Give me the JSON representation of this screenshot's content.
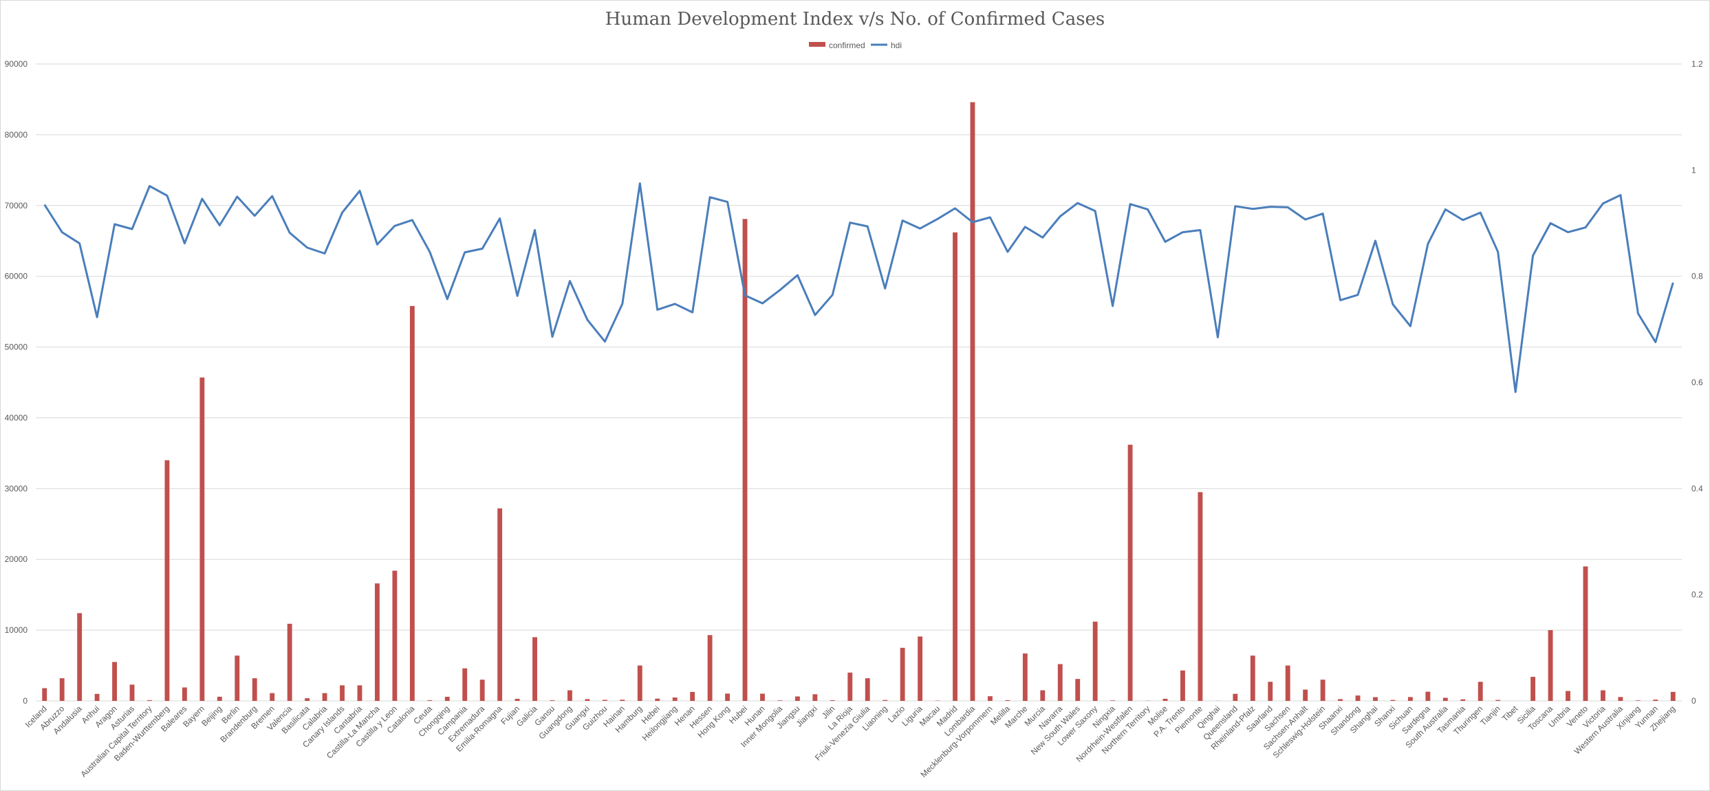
{
  "chart_data": {
    "type": "bar",
    "title": "Human Development Index v/s No. of Confirmed Cases",
    "legend": {
      "position": "top",
      "entries": [
        "confirmed",
        "hdi"
      ]
    },
    "grid": true,
    "colors": {
      "confirmed": "#C0504D",
      "hdi": "#4A7EBB",
      "grid": "#D9D9D9",
      "axis_text": "#595959"
    },
    "y_left": {
      "min": 0,
      "max": 90000,
      "ticks": [
        0,
        10000,
        20000,
        30000,
        40000,
        50000,
        60000,
        70000,
        80000,
        90000
      ]
    },
    "y_right": {
      "min": 0,
      "max": 1.2,
      "ticks": [
        "0",
        "0.2",
        "0.4",
        "0.6",
        "0.8",
        "1",
        "1.2"
      ]
    },
    "categories": [
      "Iceland",
      "Abruzzo",
      "Andalusia",
      "Anhui",
      "Aragon",
      "Asturias",
      "Australian Capital Territory",
      "Baden-Wurttemberg",
      "Baleares",
      "Bayern",
      "Beijing",
      "Berlin",
      "Brandenburg",
      "Bremen",
      "Valencia",
      "Basilicata",
      "Calabria",
      "Canary Islands",
      "Cantabria",
      "Castilla-La Mancha",
      "Castilla y Leon",
      "Catalonia",
      "Ceuta",
      "Chongqing",
      "Campania",
      "Extremadura",
      "Emilia-Romagna",
      "Fujian",
      "Galicia",
      "Gansu",
      "Guangdong",
      "Guangxi",
      "Guizhou",
      "Hainan",
      "Hamburg",
      "Hebei",
      "Heilongjiang",
      "Henan",
      "Hessen",
      "Hong Kong",
      "Hubei",
      "Hunan",
      "Inner Mongolia",
      "Jiangsu",
      "Jiangxi",
      "Jilin",
      "La Rioja",
      "Friuli-Venezia Giulia",
      "Liaoning",
      "Lazio",
      "Liguria",
      "Macau",
      "Madrid",
      "Lombardia",
      "Mecklenburg-Vorpommern",
      "Melilla",
      "Marche",
      "Murcia",
      "Navarra",
      "New South Wales",
      "Lower Saxony",
      "Ningxia",
      "Nordrhein-Westfalen",
      "Northern Territory",
      "Molise",
      "P.A. Trento",
      "Piemonte",
      "Qinghai",
      "Queensland",
      "Rheinland-Pfalz",
      "Saarland",
      "Sachsen",
      "Sachsen-Anhalt",
      "Schleswig-Holstein",
      "Shaanxi",
      "Shandong",
      "Shanghai",
      "Shanxi",
      "Sichuan",
      "Sardegna",
      "South Australia",
      "Tasmania",
      "Thuringen",
      "Tianjin",
      "Tibet",
      "Sicilia",
      "Toscana",
      "Umbria",
      "Veneto",
      "Victoria",
      "Western Australia",
      "Xinjiang",
      "Yunnan",
      "Zhejiang"
    ],
    "series": [
      {
        "name": "confirmed",
        "type": "bar",
        "axis": "left",
        "values": [
          1800,
          3200,
          12400,
          990,
          5500,
          2300,
          107,
          34000,
          1900,
          45700,
          590,
          6400,
          3200,
          1100,
          10900,
          380,
          1100,
          2200,
          2200,
          16600,
          18400,
          55800,
          100,
          580,
          4600,
          3000,
          27200,
          296,
          9000,
          91,
          1500,
          254,
          146,
          168,
          5000,
          320,
          480,
          1270,
          9300,
          1030,
          68100,
          1020,
          75,
          630,
          940,
          93,
          4000,
          3200,
          125,
          7500,
          9100,
          45,
          66200,
          84600,
          660,
          100,
          6700,
          1500,
          5200,
          3100,
          11200,
          75,
          36200,
          30,
          300,
          4300,
          29500,
          18,
          1000,
          6400,
          2700,
          5000,
          1600,
          3000,
          250,
          760,
          530,
          133,
          545,
          1300,
          440,
          220,
          2700,
          136,
          1,
          3400,
          10000,
          1400,
          19000,
          1500,
          550,
          76,
          180,
          1270
        ]
      },
      {
        "name": "hdi",
        "type": "line",
        "axis": "right",
        "values": [
          0.935,
          0.883,
          0.862,
          0.723,
          0.898,
          0.889,
          0.97,
          0.952,
          0.862,
          0.946,
          0.896,
          0.95,
          0.914,
          0.951,
          0.882,
          0.854,
          0.843,
          0.92,
          0.961,
          0.86,
          0.895,
          0.906,
          0.846,
          0.757,
          0.845,
          0.852,
          0.909,
          0.763,
          0.887,
          0.686,
          0.791,
          0.718,
          0.677,
          0.748,
          0.975,
          0.737,
          0.748,
          0.732,
          0.949,
          0.94,
          0.764,
          0.749,
          0.774,
          0.802,
          0.727,
          0.765,
          0.901,
          0.894,
          0.777,
          0.905,
          0.89,
          0.908,
          0.928,
          0.902,
          0.911,
          0.846,
          0.893,
          0.873,
          0.913,
          0.938,
          0.923,
          0.744,
          0.936,
          0.926,
          0.865,
          0.883,
          0.887,
          0.685,
          0.932,
          0.927,
          0.931,
          0.93,
          0.907,
          0.918,
          0.755,
          0.765,
          0.867,
          0.747,
          0.706,
          0.861,
          0.926,
          0.906,
          0.92,
          0.846,
          0.582,
          0.839,
          0.9,
          0.883,
          0.892,
          0.937,
          0.953,
          0.73,
          0.676,
          0.788
        ]
      }
    ]
  }
}
